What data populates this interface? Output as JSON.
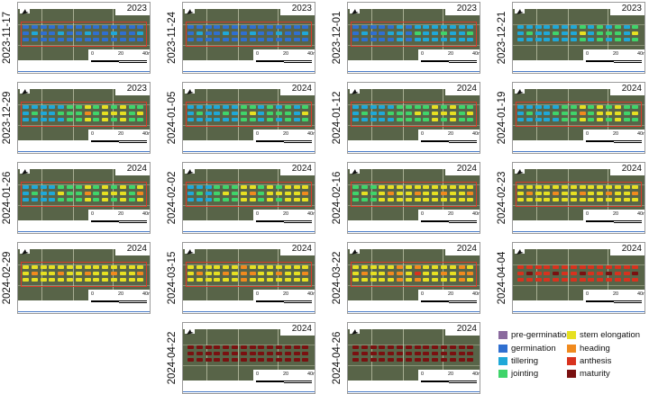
{
  "panels": [
    {
      "date": "2023-11-17",
      "year": "2023",
      "stages": [
        1,
        1,
        1,
        1,
        1,
        1,
        1,
        1,
        1,
        1,
        1,
        1,
        1,
        1
      ],
      "outlined": true
    },
    {
      "date": "2023-11-24",
      "year": "2023",
      "stages": [
        1,
        1,
        1,
        1,
        1,
        1,
        1,
        1,
        1,
        1,
        1,
        1,
        1,
        1
      ],
      "outlined": true
    },
    {
      "date": "2023-12-01",
      "year": "2023",
      "stages": [
        1,
        1,
        1,
        1,
        1,
        2,
        1,
        2,
        2,
        2,
        2,
        2,
        2,
        2
      ],
      "outlined": true
    },
    {
      "date": "2023-12-21",
      "year": "2023",
      "stages": [
        2,
        2,
        2,
        2,
        2,
        2,
        2,
        3,
        2,
        3,
        2,
        3,
        2,
        3
      ],
      "outlined": false
    },
    {
      "date": "2023-12-29",
      "year": "2023",
      "stages": [
        2,
        2,
        2,
        2,
        2,
        3,
        3,
        4,
        3,
        4,
        3,
        4,
        3,
        3
      ],
      "outlined": true
    },
    {
      "date": "2024-01-05",
      "year": "2024",
      "stages": [
        2,
        2,
        2,
        2,
        2,
        2,
        3,
        3,
        2,
        3,
        2,
        3,
        2,
        3
      ],
      "outlined": true
    },
    {
      "date": "2024-01-12",
      "year": "2024",
      "stages": [
        2,
        2,
        2,
        2,
        2,
        3,
        3,
        3,
        3,
        4,
        3,
        4,
        3,
        3
      ],
      "outlined": true
    },
    {
      "date": "2024-01-19",
      "year": "2024",
      "stages": [
        2,
        2,
        2,
        2,
        2,
        3,
        3,
        4,
        3,
        4,
        3,
        4,
        3,
        3
      ],
      "outlined": true
    },
    {
      "date": "2024-01-26",
      "year": "2024",
      "stages": [
        2,
        2,
        2,
        2,
        3,
        3,
        3,
        4,
        3,
        4,
        3,
        4,
        3,
        4
      ],
      "outlined": true
    },
    {
      "date": "2024-02-02",
      "year": "2024",
      "stages": [
        2,
        2,
        2,
        3,
        3,
        3,
        4,
        4,
        3,
        4,
        3,
        4,
        4,
        4
      ],
      "outlined": true
    },
    {
      "date": "2024-02-16",
      "year": "2024",
      "stages": [
        3,
        3,
        3,
        4,
        4,
        4,
        4,
        4,
        4,
        4,
        4,
        4,
        4,
        4
      ],
      "outlined": true
    },
    {
      "date": "2024-02-23",
      "year": "2024",
      "stages": [
        4,
        4,
        4,
        4,
        4,
        4,
        4,
        4,
        4,
        4,
        4,
        4,
        4,
        4
      ],
      "outlined": true
    },
    {
      "date": "2024-02-29",
      "year": "2024",
      "stages": [
        4,
        4,
        4,
        4,
        4,
        4,
        4,
        4,
        4,
        4,
        4,
        4,
        4,
        4
      ],
      "outlined": true
    },
    {
      "date": "2024-03-15",
      "year": "2024",
      "stages": [
        4,
        4,
        4,
        4,
        4,
        4,
        5,
        4,
        4,
        4,
        4,
        4,
        4,
        4
      ],
      "outlined": true
    },
    {
      "date": "2024-03-22",
      "year": "2024",
      "stages": [
        4,
        4,
        4,
        4,
        4,
        5,
        4,
        5,
        4,
        4,
        4,
        4,
        5,
        4
      ],
      "outlined": true
    },
    {
      "date": "2024-04-04",
      "year": "2024",
      "stages": [
        6,
        6,
        6,
        6,
        6,
        6,
        6,
        6,
        6,
        6,
        6,
        6,
        6,
        6
      ],
      "outlined": false
    },
    {
      "date": "2024-04-22",
      "year": "2024",
      "stages": [
        7,
        7,
        7,
        7,
        7,
        7,
        7,
        7,
        7,
        7,
        7,
        7,
        7,
        7
      ],
      "outlined": false
    },
    {
      "date": "2024-04-26",
      "year": "2024",
      "stages": [
        7,
        7,
        7,
        7,
        7,
        7,
        7,
        7,
        7,
        7,
        7,
        7,
        7,
        7
      ],
      "outlined": false
    }
  ],
  "scale_labels": [
    "0",
    "20",
    "40m"
  ],
  "legend": [
    {
      "label": "pre-germination",
      "color": "#8a6a9e"
    },
    {
      "label": "germination",
      "color": "#2f6fd0"
    },
    {
      "label": "tillering",
      "color": "#1fa8d8"
    },
    {
      "label": "jointing",
      "color": "#3fd46a"
    },
    {
      "label": "stem elongation",
      "color": "#e6e022"
    },
    {
      "label": "heading",
      "color": "#f08a1e"
    },
    {
      "label": "anthesis",
      "color": "#d8321e"
    },
    {
      "label": "maturity",
      "color": "#7a1010"
    }
  ],
  "colors": {
    "field": "#586448",
    "outline": "#d83a2a",
    "border": "#9a9a9a"
  }
}
